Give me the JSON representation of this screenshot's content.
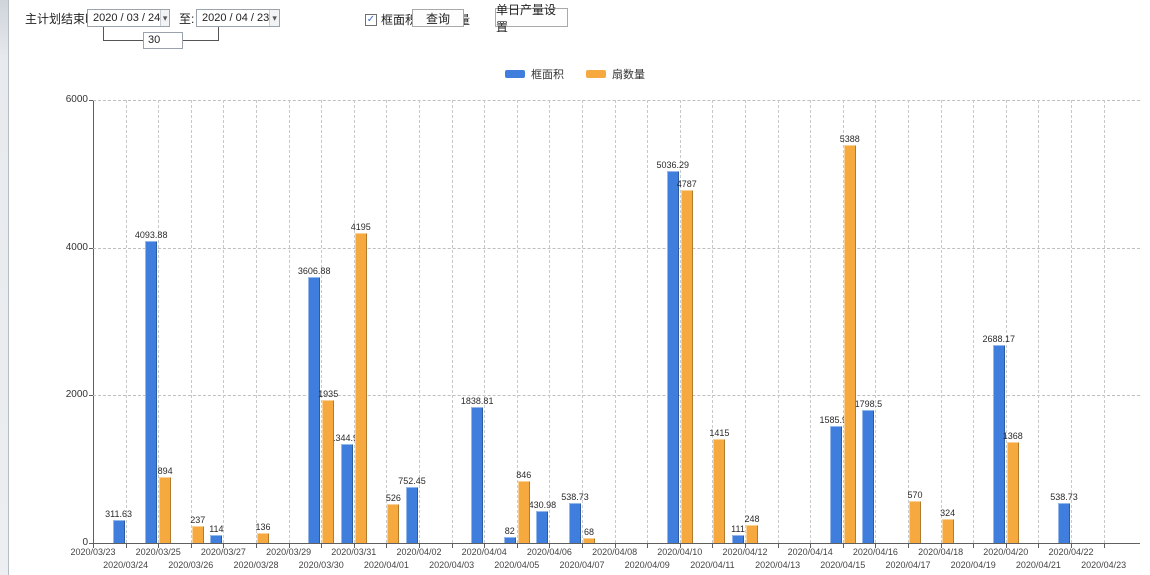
{
  "icons": {
    "check": "✓",
    "dropdown_arrow": "▾"
  },
  "toolbar": {
    "label_main": "主计划结束时间:",
    "date_from": "2020 / 03 / 24",
    "label_to": "至:",
    "date_to": "2020 / 04 / 23",
    "interval_value": "30",
    "checkbox_frame": {
      "label": "框面积",
      "checked": true
    },
    "checkbox_fan": {
      "label": "扇数量",
      "checked": true
    },
    "query_button": "查询",
    "daily_output_button": "单日产量设置"
  },
  "chart_data": {
    "type": "bar",
    "title": "",
    "xlabel": "",
    "ylabel": "",
    "ylim": [
      0,
      6000
    ],
    "yticks": [
      0,
      2000,
      4000,
      6000
    ],
    "grid": true,
    "legend_position": "top",
    "categories": [
      "2020/03/23",
      "2020/03/24",
      "2020/03/25",
      "2020/03/26",
      "2020/03/27",
      "2020/03/28",
      "2020/03/29",
      "2020/03/30",
      "2020/03/31",
      "2020/04/01",
      "2020/04/02",
      "2020/04/03",
      "2020/04/04",
      "2020/04/05",
      "2020/04/06",
      "2020/04/07",
      "2020/04/08",
      "2020/04/09",
      "2020/04/10",
      "2020/04/11",
      "2020/04/12",
      "2020/04/13",
      "2020/04/14",
      "2020/04/15",
      "2020/04/16",
      "2020/04/17",
      "2020/04/18",
      "2020/04/19",
      "2020/04/20",
      "2020/04/21",
      "2020/04/22",
      "2020/04/23"
    ],
    "series": [
      {
        "name": "框面积",
        "color": "#3f7edd",
        "values": [
          null,
          311.63,
          4093.88,
          null,
          114,
          null,
          null,
          3606.88,
          1344.95,
          null,
          752.45,
          null,
          1838.81,
          82,
          430.98,
          538.73,
          null,
          null,
          5036.29,
          null,
          111,
          null,
          null,
          1585.96,
          1798.5,
          null,
          null,
          null,
          2688.17,
          null,
          538.73,
          null
        ]
      },
      {
        "name": "扇数量",
        "color": "#f5a93f",
        "values": [
          null,
          null,
          894,
          237,
          null,
          136,
          null,
          1935,
          4195,
          526,
          null,
          null,
          null,
          846,
          null,
          68,
          null,
          null,
          4787,
          1415,
          248,
          null,
          null,
          5388,
          null,
          570,
          324,
          null,
          1368,
          null,
          null,
          null
        ]
      }
    ]
  }
}
